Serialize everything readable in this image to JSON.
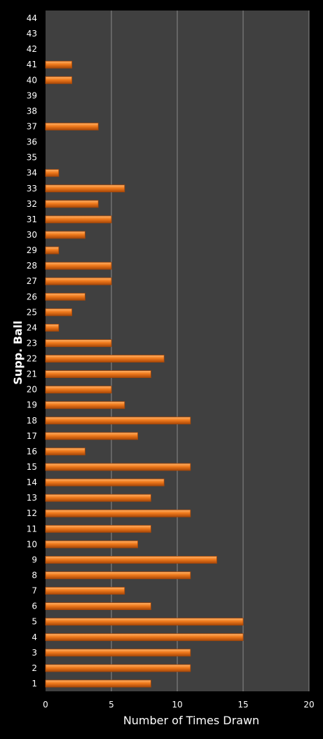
{
  "chart_data": {
    "type": "bar",
    "orientation": "horizontal",
    "title": "",
    "xlabel": "Number of Times Drawn",
    "ylabel": "Supp. Ball",
    "xlim": [
      0,
      20
    ],
    "x_ticks": [
      0,
      5,
      10,
      15,
      20
    ],
    "grid": true,
    "legend": "none",
    "categories": [
      "1",
      "2",
      "3",
      "4",
      "5",
      "6",
      "7",
      "8",
      "9",
      "10",
      "11",
      "12",
      "13",
      "14",
      "15",
      "16",
      "17",
      "18",
      "19",
      "20",
      "21",
      "22",
      "23",
      "24",
      "25",
      "26",
      "27",
      "28",
      "29",
      "30",
      "31",
      "32",
      "33",
      "34",
      "35",
      "36",
      "37",
      "38",
      "39",
      "40",
      "41",
      "42",
      "43",
      "44"
    ],
    "values": [
      8,
      11,
      11,
      15,
      15,
      8,
      6,
      11,
      13,
      7,
      8,
      11,
      8,
      9,
      11,
      3,
      7,
      11,
      6,
      5,
      8,
      9,
      5,
      1,
      2,
      3,
      5,
      5,
      1,
      3,
      5,
      4,
      6,
      1,
      0,
      0,
      4,
      0,
      0,
      2,
      2,
      0,
      0,
      0
    ],
    "colors": {
      "background": "#000000",
      "plot_area": "#404040",
      "grid": "#8a8a8a",
      "bar_fill": "#f07a1c",
      "bar_highlight": "#ffb46a",
      "bar_shadow": "#a94808",
      "text": "#ffffff"
    }
  }
}
